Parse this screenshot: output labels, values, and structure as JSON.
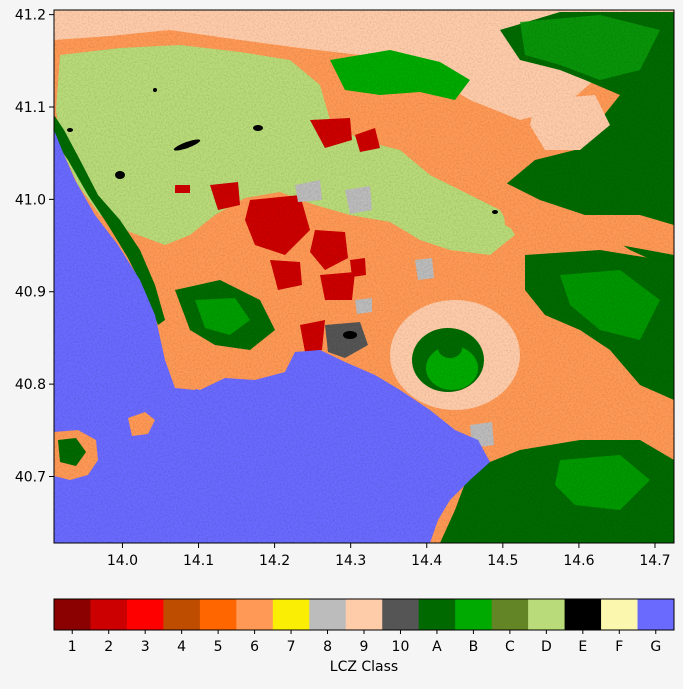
{
  "map": {
    "x_ticks": [
      "14.0",
      "14.1",
      "14.2",
      "14.3",
      "14.4",
      "14.5",
      "14.6",
      "14.7"
    ],
    "y_ticks": [
      "41.2",
      "41.1",
      "41.0",
      "40.9",
      "40.8",
      "40.7"
    ]
  },
  "legend": {
    "title": "LCZ Class",
    "classes": [
      {
        "label": "1",
        "color": "#8b0000"
      },
      {
        "label": "2",
        "color": "#cc0000"
      },
      {
        "label": "3",
        "color": "#ff0000"
      },
      {
        "label": "4",
        "color": "#bf4d00"
      },
      {
        "label": "5",
        "color": "#ff6600"
      },
      {
        "label": "6",
        "color": "#ff9955"
      },
      {
        "label": "7",
        "color": "#faee05"
      },
      {
        "label": "8",
        "color": "#bcbcbc"
      },
      {
        "label": "9",
        "color": "#ffccaa"
      },
      {
        "label": "10",
        "color": "#555555"
      },
      {
        "label": "A",
        "color": "#006a00"
      },
      {
        "label": "B",
        "color": "#00aa00"
      },
      {
        "label": "C",
        "color": "#648525"
      },
      {
        "label": "D",
        "color": "#b9db79"
      },
      {
        "label": "E",
        "color": "#000000"
      },
      {
        "label": "F",
        "color": "#fbf7ae"
      },
      {
        "label": "G",
        "color": "#6a6aff"
      }
    ]
  }
}
